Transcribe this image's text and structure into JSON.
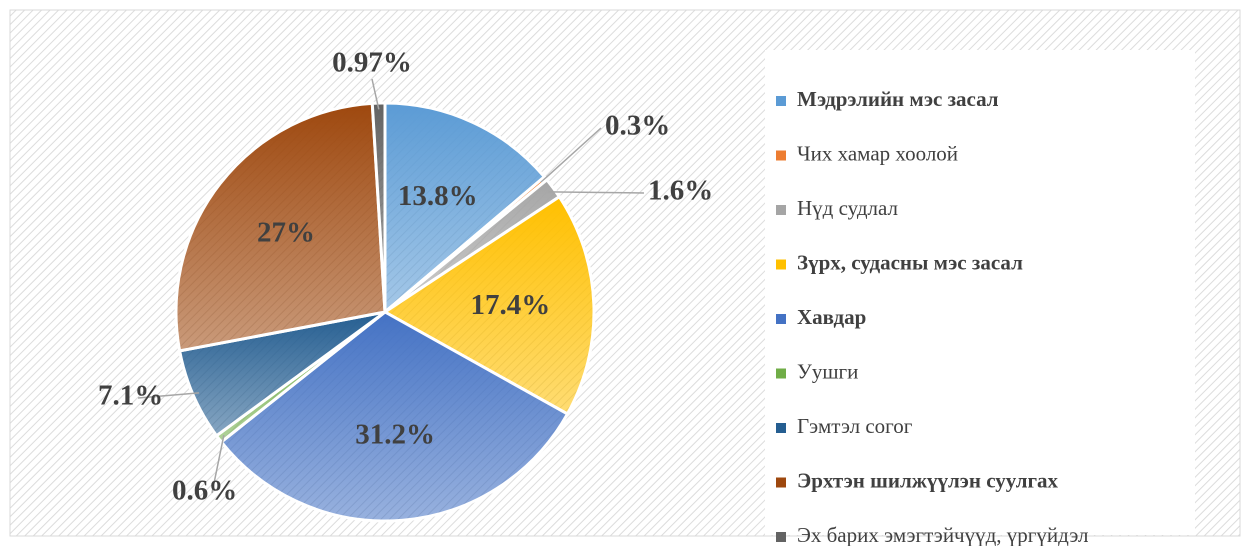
{
  "chart_data": {
    "type": "pie",
    "categories": [
      "Мэдрэлийн мэс засал",
      "Чих хамар хоолой",
      "Нүд судлал",
      "Зүрх, судасны мэс засал",
      "Хавдар",
      "Уушги",
      "Гэмтэл согог",
      "Эрхтэн шилжүүлэн суулгах",
      "Эх барих эмэгтэйчүүд, үргүйдэл"
    ],
    "values": [
      13.8,
      0.3,
      1.6,
      17.4,
      31.2,
      0.6,
      7.1,
      27,
      0.97
    ],
    "value_labels": [
      "13.8%",
      "0.3%",
      "1.6%",
      "17.4%",
      "31.2%",
      "0.6%",
      "7.1%",
      "27%",
      "0.97%"
    ],
    "colors": [
      "#5b9bd5",
      "#ed7d31",
      "#a5a5a5",
      "#ffc000",
      "#4472c4",
      "#70ad47",
      "#255e91",
      "#9e480e",
      "#636363"
    ],
    "legend_bold": [
      true,
      false,
      false,
      true,
      true,
      false,
      false,
      true,
      false
    ],
    "legend": "right"
  }
}
